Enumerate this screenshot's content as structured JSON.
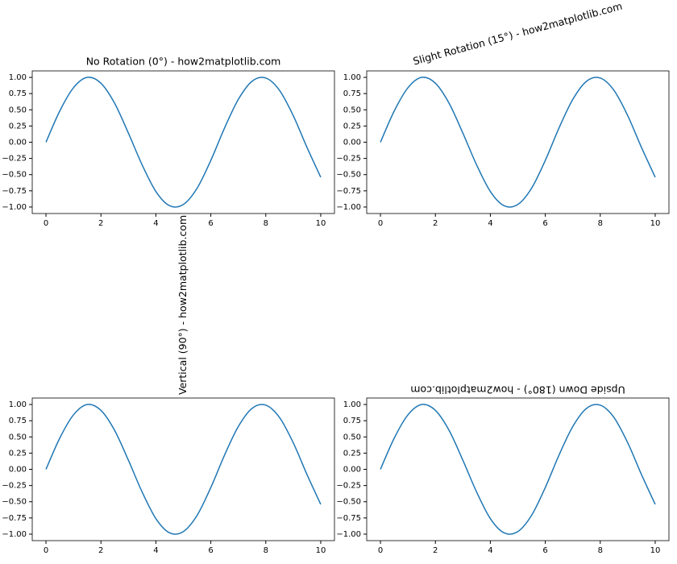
{
  "chart_data": [
    {
      "type": "line",
      "title": "No Rotation (0°) - how2matplotlib.com",
      "title_rotation": 0,
      "x": [
        0,
        0.5,
        1,
        1.5,
        2,
        2.5,
        3,
        3.5,
        4,
        4.5,
        5,
        5.5,
        6,
        6.5,
        7,
        7.5,
        8,
        8.5,
        9,
        9.5,
        10
      ],
      "values": [
        0,
        0.48,
        0.84,
        1.0,
        0.91,
        0.6,
        0.14,
        -0.35,
        -0.76,
        -0.98,
        -0.96,
        -0.71,
        -0.28,
        0.22,
        0.66,
        0.94,
        0.99,
        0.8,
        0.41,
        -0.08,
        -0.54
      ],
      "color": "#1f77b4",
      "xlim": [
        -0.5,
        10.5
      ],
      "ylim": [
        -1.1,
        1.1
      ],
      "xticks": [
        0,
        2,
        4,
        6,
        8,
        10
      ],
      "yticks": [
        {
          "value": 1,
          "label": "1.00"
        },
        {
          "value": 0.75,
          "label": "0.75"
        },
        {
          "value": 0.5,
          "label": "0.50"
        },
        {
          "value": 0.25,
          "label": "0.25"
        },
        {
          "value": 0,
          "label": "0.00"
        },
        {
          "value": -0.25,
          "label": "−0.25"
        },
        {
          "value": -0.5,
          "label": "−0.50"
        },
        {
          "value": -0.75,
          "label": "−0.75"
        },
        {
          "value": -1,
          "label": "−1.00"
        }
      ]
    },
    {
      "type": "line",
      "title": "Slight Rotation (15°) - how2matplotlib.com",
      "title_rotation": 15,
      "x": [
        0,
        0.5,
        1,
        1.5,
        2,
        2.5,
        3,
        3.5,
        4,
        4.5,
        5,
        5.5,
        6,
        6.5,
        7,
        7.5,
        8,
        8.5,
        9,
        9.5,
        10
      ],
      "values": [
        0,
        0.48,
        0.84,
        1.0,
        0.91,
        0.6,
        0.14,
        -0.35,
        -0.76,
        -0.98,
        -0.96,
        -0.71,
        -0.28,
        0.22,
        0.66,
        0.94,
        0.99,
        0.8,
        0.41,
        -0.08,
        -0.54
      ],
      "color": "#1f77b4",
      "xlim": [
        -0.5,
        10.5
      ],
      "ylim": [
        -1.1,
        1.1
      ],
      "xticks": [
        0,
        2,
        4,
        6,
        8,
        10
      ],
      "yticks": [
        {
          "value": 1,
          "label": "1.00"
        },
        {
          "value": 0.75,
          "label": "0.75"
        },
        {
          "value": 0.5,
          "label": "0.50"
        },
        {
          "value": 0.25,
          "label": "0.25"
        },
        {
          "value": 0,
          "label": "0.00"
        },
        {
          "value": -0.25,
          "label": "−0.25"
        },
        {
          "value": -0.5,
          "label": "−0.50"
        },
        {
          "value": -0.75,
          "label": "−0.75"
        },
        {
          "value": -1,
          "label": "−1.00"
        }
      ]
    },
    {
      "type": "line",
      "title": "Vertical (90°) - how2matplotlib.com",
      "title_rotation": 90,
      "x": [
        0,
        0.5,
        1,
        1.5,
        2,
        2.5,
        3,
        3.5,
        4,
        4.5,
        5,
        5.5,
        6,
        6.5,
        7,
        7.5,
        8,
        8.5,
        9,
        9.5,
        10
      ],
      "values": [
        0,
        0.48,
        0.84,
        1.0,
        0.91,
        0.6,
        0.14,
        -0.35,
        -0.76,
        -0.98,
        -0.96,
        -0.71,
        -0.28,
        0.22,
        0.66,
        0.94,
        0.99,
        0.8,
        0.41,
        -0.08,
        -0.54
      ],
      "color": "#1f77b4",
      "xlim": [
        -0.5,
        10.5
      ],
      "ylim": [
        -1.1,
        1.1
      ],
      "xticks": [
        0,
        2,
        4,
        6,
        8,
        10
      ],
      "yticks": [
        {
          "value": 1,
          "label": "1.00"
        },
        {
          "value": 0.75,
          "label": "0.75"
        },
        {
          "value": 0.5,
          "label": "0.50"
        },
        {
          "value": 0.25,
          "label": "0.25"
        },
        {
          "value": 0,
          "label": "0.00"
        },
        {
          "value": -0.25,
          "label": "−0.25"
        },
        {
          "value": -0.5,
          "label": "−0.50"
        },
        {
          "value": -0.75,
          "label": "−0.75"
        },
        {
          "value": -1,
          "label": "−1.00"
        }
      ]
    },
    {
      "type": "line",
      "title": "Upside Down (180°) - how2matplotlib.com",
      "title_rotation": 180,
      "x": [
        0,
        0.5,
        1,
        1.5,
        2,
        2.5,
        3,
        3.5,
        4,
        4.5,
        5,
        5.5,
        6,
        6.5,
        7,
        7.5,
        8,
        8.5,
        9,
        9.5,
        10
      ],
      "values": [
        0,
        0.48,
        0.84,
        1.0,
        0.91,
        0.6,
        0.14,
        -0.35,
        -0.76,
        -0.98,
        -0.96,
        -0.71,
        -0.28,
        0.22,
        0.66,
        0.94,
        0.99,
        0.8,
        0.41,
        -0.08,
        -0.54
      ],
      "color": "#1f77b4",
      "xlim": [
        -0.5,
        10.5
      ],
      "ylim": [
        -1.1,
        1.1
      ],
      "xticks": [
        0,
        2,
        4,
        6,
        8,
        10
      ],
      "yticks": [
        {
          "value": 1,
          "label": "1.00"
        },
        {
          "value": 0.75,
          "label": "0.75"
        },
        {
          "value": 0.5,
          "label": "0.50"
        },
        {
          "value": 0.25,
          "label": "0.25"
        },
        {
          "value": 0,
          "label": "0.00"
        },
        {
          "value": -0.25,
          "label": "−0.25"
        },
        {
          "value": -0.5,
          "label": "−0.50"
        },
        {
          "value": -0.75,
          "label": "−0.75"
        },
        {
          "value": -1,
          "label": "−1.00"
        }
      ]
    }
  ]
}
